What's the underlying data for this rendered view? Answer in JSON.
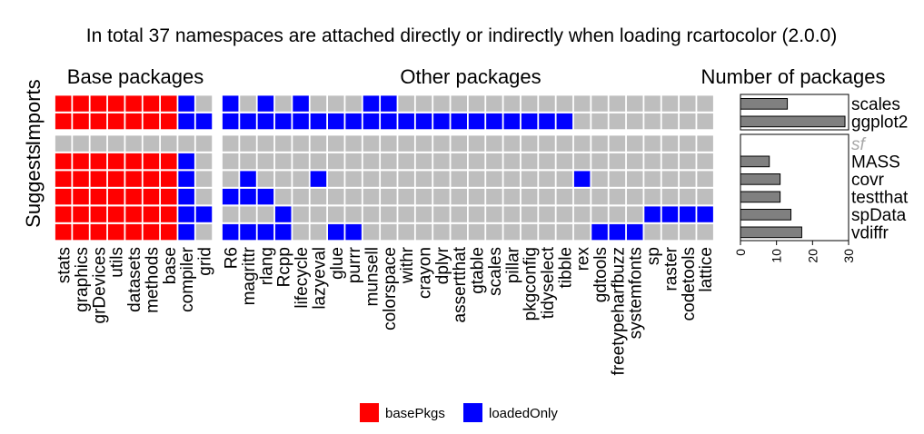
{
  "chart_data": {
    "type": "heatmap",
    "title": "In total 37 namespaces are attached directly or indirectly when loading rcartocolor (2.0.0)",
    "panels": {
      "base_title": "Base packages",
      "other_title": "Other packages",
      "count_title": "Number of packages"
    },
    "row_groups": [
      {
        "name": "Imports",
        "rows": [
          "scales",
          "ggplot2"
        ]
      },
      {
        "name": "Suggests",
        "rows": [
          "sf",
          "MASS",
          "covr",
          "testthat",
          "spData",
          "vdiffr"
        ]
      }
    ],
    "rows": [
      "scales",
      "ggplot2",
      "sf",
      "MASS",
      "covr",
      "testthat",
      "spData",
      "vdiffr"
    ],
    "row_greyed": [
      "sf"
    ],
    "base_packages": [
      "stats",
      "graphics",
      "grDevices",
      "utils",
      "datasets",
      "methods",
      "base",
      "compiler",
      "grid"
    ],
    "other_packages": [
      "R6",
      "magrittr",
      "rlang",
      "Rcpp",
      "lifecycle",
      "lazyeval",
      "glue",
      "purrr",
      "munsell",
      "colorspace",
      "withr",
      "crayon",
      "dplyr",
      "assertthat",
      "gtable",
      "scales",
      "pillar",
      "pkgconfig",
      "tidyselect",
      "tibble",
      "rex",
      "gdtools",
      "freetypeharfbuzz",
      "systemfonts",
      "sp",
      "raster",
      "codetools",
      "lattice"
    ],
    "base_matrix": [
      [
        "B",
        "B",
        "B",
        "B",
        "B",
        "B",
        "B",
        "L",
        "-"
      ],
      [
        "B",
        "B",
        "B",
        "B",
        "B",
        "B",
        "B",
        "L",
        "L"
      ],
      [
        "-",
        "-",
        "-",
        "-",
        "-",
        "-",
        "-",
        "-",
        "-"
      ],
      [
        "B",
        "B",
        "B",
        "B",
        "B",
        "B",
        "B",
        "L",
        "-"
      ],
      [
        "B",
        "B",
        "B",
        "B",
        "B",
        "B",
        "B",
        "L",
        "-"
      ],
      [
        "B",
        "B",
        "B",
        "B",
        "B",
        "B",
        "B",
        "L",
        "-"
      ],
      [
        "B",
        "B",
        "B",
        "B",
        "B",
        "B",
        "B",
        "L",
        "L"
      ],
      [
        "B",
        "B",
        "B",
        "B",
        "B",
        "B",
        "B",
        "L",
        "-"
      ]
    ],
    "other_matrix": [
      [
        "L",
        "-",
        "L",
        "-",
        "L",
        "-",
        "-",
        "-",
        "L",
        "L",
        "-",
        "-",
        "-",
        "-",
        "-",
        "-",
        "-",
        "-",
        "-",
        "-",
        "-",
        "-",
        "-",
        "-",
        "-",
        "-",
        "-",
        "-"
      ],
      [
        "L",
        "L",
        "L",
        "L",
        "L",
        "L",
        "L",
        "L",
        "L",
        "L",
        "L",
        "L",
        "L",
        "L",
        "L",
        "L",
        "L",
        "L",
        "L",
        "L",
        "-",
        "-",
        "-",
        "-",
        "-",
        "-",
        "-",
        "-"
      ],
      [
        "-",
        "-",
        "-",
        "-",
        "-",
        "-",
        "-",
        "-",
        "-",
        "-",
        "-",
        "-",
        "-",
        "-",
        "-",
        "-",
        "-",
        "-",
        "-",
        "-",
        "-",
        "-",
        "-",
        "-",
        "-",
        "-",
        "-",
        "-"
      ],
      [
        "-",
        "-",
        "-",
        "-",
        "-",
        "-",
        "-",
        "-",
        "-",
        "-",
        "-",
        "-",
        "-",
        "-",
        "-",
        "-",
        "-",
        "-",
        "-",
        "-",
        "-",
        "-",
        "-",
        "-",
        "-",
        "-",
        "-",
        "-"
      ],
      [
        "-",
        "L",
        "-",
        "-",
        "-",
        "L",
        "-",
        "-",
        "-",
        "-",
        "-",
        "-",
        "-",
        "-",
        "-",
        "-",
        "-",
        "-",
        "-",
        "-",
        "L",
        "-",
        "-",
        "-",
        "-",
        "-",
        "-",
        "-"
      ],
      [
        "L",
        "L",
        "L",
        "-",
        "-",
        "-",
        "-",
        "-",
        "-",
        "-",
        "-",
        "-",
        "-",
        "-",
        "-",
        "-",
        "-",
        "-",
        "-",
        "-",
        "-",
        "-",
        "-",
        "-",
        "-",
        "-",
        "-",
        "-"
      ],
      [
        "-",
        "-",
        "-",
        "L",
        "-",
        "-",
        "-",
        "-",
        "-",
        "-",
        "-",
        "-",
        "-",
        "-",
        "-",
        "-",
        "-",
        "-",
        "-",
        "-",
        "-",
        "-",
        "-",
        "-",
        "L",
        "L",
        "L",
        "L"
      ],
      [
        "L",
        "L",
        "L",
        "L",
        "-",
        "-",
        "L",
        "L",
        "-",
        "-",
        "-",
        "-",
        "-",
        "-",
        "-",
        "-",
        "-",
        "-",
        "-",
        "-",
        "-",
        "L",
        "L",
        "L",
        "-",
        "-",
        "-",
        "-"
      ]
    ],
    "counts": [
      13,
      29,
      0,
      8,
      11,
      11,
      14,
      17
    ],
    "count_axis": {
      "ticks": [
        0,
        10,
        20,
        30
      ],
      "range": [
        0,
        30
      ]
    },
    "legend": [
      {
        "key": "B",
        "label": "basePkgs",
        "color": "#ff0000"
      },
      {
        "key": "L",
        "label": "loadedOnly",
        "color": "#0000ff"
      }
    ],
    "empty_color": "#bebebe",
    "bar_color": "#808080"
  }
}
